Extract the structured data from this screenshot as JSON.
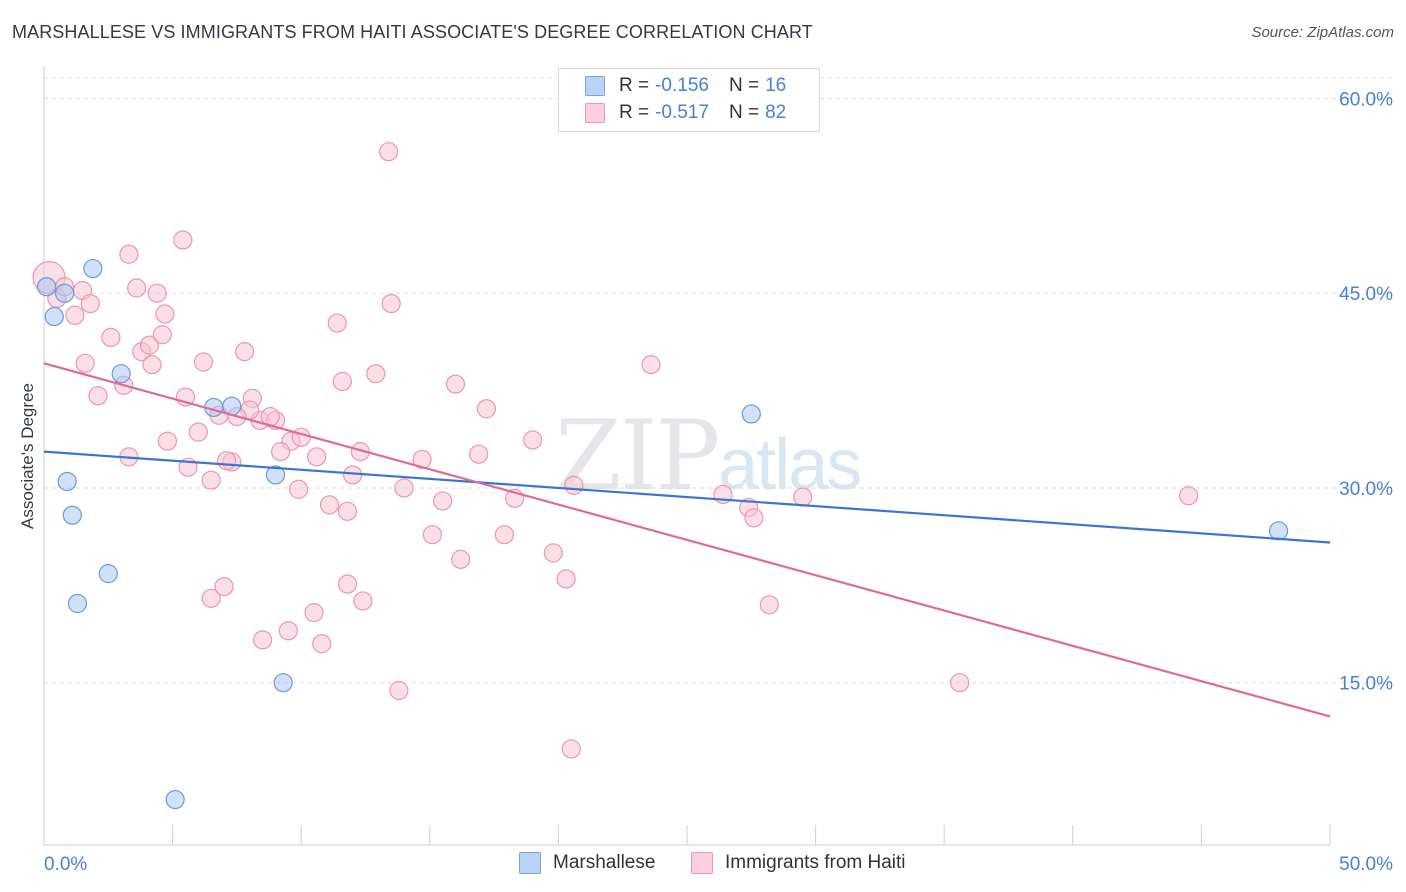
{
  "title": "MARSHALLESE VS IMMIGRANTS FROM HAITI ASSOCIATE'S DEGREE CORRELATION CHART",
  "source": "Source: ZipAtlas.com",
  "watermark": {
    "zip": "ZIP",
    "atlas": "atlas"
  },
  "legend": {
    "rows": [
      {
        "r_label": "R =",
        "r_value": "-0.156",
        "n_label": "N =",
        "n_value": "16",
        "color": "#a9c8f2",
        "border": "#7aa6e0"
      },
      {
        "r_label": "R =",
        "r_value": "-0.517",
        "n_label": "N =",
        "n_value": "82",
        "color": "#f8c4d3",
        "border": "#ee9ab4"
      }
    ]
  },
  "bottom_legend": [
    "Marshallese",
    "Immigrants from Haiti"
  ],
  "chart_data": {
    "type": "scatter",
    "title": "MARSHALLESE VS IMMIGRANTS FROM HAITI ASSOCIATE'S DEGREE CORRELATION CHART",
    "xlabel": "",
    "ylabel": "Associate's Degree",
    "xlim": [
      0,
      50
    ],
    "ylim": [
      2.5,
      62.5
    ],
    "x_tick_labels": [
      "0.0%",
      "50.0%"
    ],
    "y_ticks": [
      15,
      30,
      45,
      60
    ],
    "y_tick_labels": [
      "15.0%",
      "30.0%",
      "45.0%",
      "60.0%"
    ],
    "series": [
      {
        "name": "Marshallese",
        "color": "#a9c8f2",
        "stroke": "#6d9bd8",
        "line_color": "#3a76d0",
        "trend": {
          "x": [
            0,
            50
          ],
          "y": [
            32.8,
            25.8
          ]
        },
        "points": [
          [
            0.1,
            45.5
          ],
          [
            0.4,
            43.2
          ],
          [
            0.8,
            45.0
          ],
          [
            1.9,
            46.9
          ],
          [
            3.0,
            38.8
          ],
          [
            0.9,
            30.5
          ],
          [
            1.1,
            27.9
          ],
          [
            2.5,
            23.4
          ],
          [
            1.3,
            21.1
          ],
          [
            6.6,
            36.2
          ],
          [
            7.3,
            36.3
          ],
          [
            9.0,
            31.0
          ],
          [
            9.3,
            15.0
          ],
          [
            5.1,
            6.0
          ],
          [
            27.5,
            35.7
          ],
          [
            48.0,
            26.7
          ]
        ]
      },
      {
        "name": "Immigrants from Haiti",
        "color": "#f8c4d3",
        "stroke": "#ec96b0",
        "line_color": "#e06996",
        "trend": {
          "x": [
            0,
            50
          ],
          "y": [
            39.6,
            12.4
          ]
        },
        "points": [
          [
            0.2,
            46.2
          ],
          [
            0.5,
            44.6
          ],
          [
            1.5,
            45.2
          ],
          [
            0.8,
            45.5
          ],
          [
            1.8,
            44.2
          ],
          [
            1.2,
            43.3
          ],
          [
            3.3,
            48.0
          ],
          [
            3.6,
            45.4
          ],
          [
            4.4,
            45.0
          ],
          [
            4.7,
            43.4
          ],
          [
            5.4,
            49.1
          ],
          [
            2.6,
            41.6
          ],
          [
            3.8,
            40.5
          ],
          [
            4.1,
            41.0
          ],
          [
            4.6,
            41.8
          ],
          [
            4.2,
            39.5
          ],
          [
            1.6,
            39.6
          ],
          [
            2.1,
            37.1
          ],
          [
            3.1,
            37.9
          ],
          [
            6.2,
            39.7
          ],
          [
            5.5,
            37.0
          ],
          [
            7.8,
            40.5
          ],
          [
            3.3,
            32.4
          ],
          [
            4.8,
            33.6
          ],
          [
            5.6,
            31.6
          ],
          [
            6.0,
            34.3
          ],
          [
            6.5,
            30.6
          ],
          [
            7.3,
            32.0
          ],
          [
            7.1,
            32.1
          ],
          [
            6.8,
            35.6
          ],
          [
            8.1,
            36.9
          ],
          [
            8.4,
            35.2
          ],
          [
            9.0,
            35.2
          ],
          [
            8.8,
            35.5
          ],
          [
            9.6,
            33.6
          ],
          [
            10.0,
            33.9
          ],
          [
            10.6,
            32.4
          ],
          [
            9.9,
            29.9
          ],
          [
            11.1,
            28.7
          ],
          [
            11.8,
            28.2
          ],
          [
            12.3,
            32.8
          ],
          [
            11.6,
            38.2
          ],
          [
            11.4,
            42.7
          ],
          [
            12.9,
            38.8
          ],
          [
            13.5,
            44.2
          ],
          [
            13.4,
            55.9
          ],
          [
            14.7,
            32.2
          ],
          [
            15.1,
            26.4
          ],
          [
            16.0,
            38.0
          ],
          [
            16.2,
            24.5
          ],
          [
            16.9,
            32.6
          ],
          [
            17.2,
            36.1
          ],
          [
            18.3,
            29.2
          ],
          [
            17.9,
            26.4
          ],
          [
            19.0,
            33.7
          ],
          [
            19.8,
            25.0
          ],
          [
            20.3,
            23.0
          ],
          [
            20.6,
            30.2
          ],
          [
            23.6,
            39.5
          ],
          [
            26.4,
            29.5
          ],
          [
            27.4,
            28.5
          ],
          [
            27.6,
            27.7
          ],
          [
            29.5,
            29.3
          ],
          [
            28.2,
            21.0
          ],
          [
            35.6,
            15.0
          ],
          [
            44.5,
            29.4
          ],
          [
            6.5,
            21.5
          ],
          [
            7.0,
            22.4
          ],
          [
            8.5,
            18.3
          ],
          [
            9.5,
            19.0
          ],
          [
            10.8,
            18.0
          ],
          [
            10.5,
            20.4
          ],
          [
            11.8,
            22.6
          ],
          [
            12.4,
            21.3
          ],
          [
            13.8,
            14.4
          ],
          [
            20.5,
            9.9
          ],
          [
            8.0,
            36.0
          ],
          [
            7.5,
            35.5
          ],
          [
            9.2,
            32.8
          ],
          [
            12.0,
            31.0
          ],
          [
            14.0,
            30.0
          ],
          [
            15.5,
            29.0
          ]
        ]
      }
    ]
  }
}
